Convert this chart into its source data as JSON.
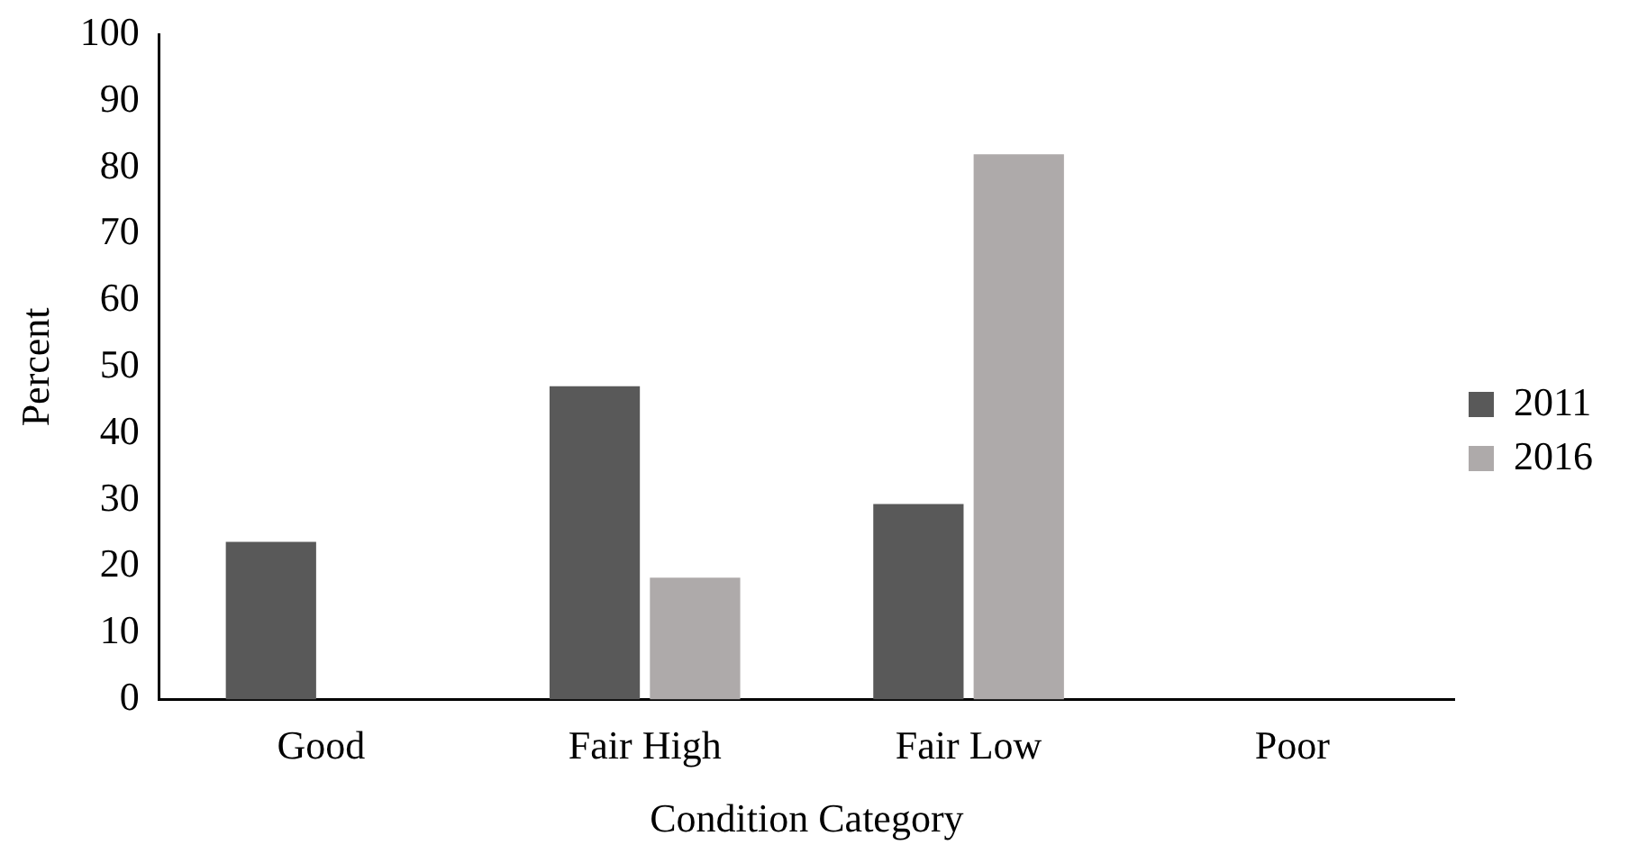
{
  "chart_data": {
    "type": "bar",
    "xlabel": "Condition Category",
    "ylabel": "Percent",
    "categories": [
      "Good",
      "Fair High",
      "Fair Low",
      "Poor"
    ],
    "series": [
      {
        "name": "2011",
        "color": "#595959",
        "values": [
          23.7,
          47.1,
          29.4,
          0
        ]
      },
      {
        "name": "2016",
        "color": "#aeaaaa",
        "values": [
          0,
          18.3,
          82,
          0
        ]
      }
    ],
    "ylim": [
      0,
      100
    ],
    "yticks": [
      0,
      10,
      20,
      30,
      40,
      50,
      60,
      70,
      80,
      90,
      100
    ],
    "grid": false,
    "legend": "right"
  }
}
